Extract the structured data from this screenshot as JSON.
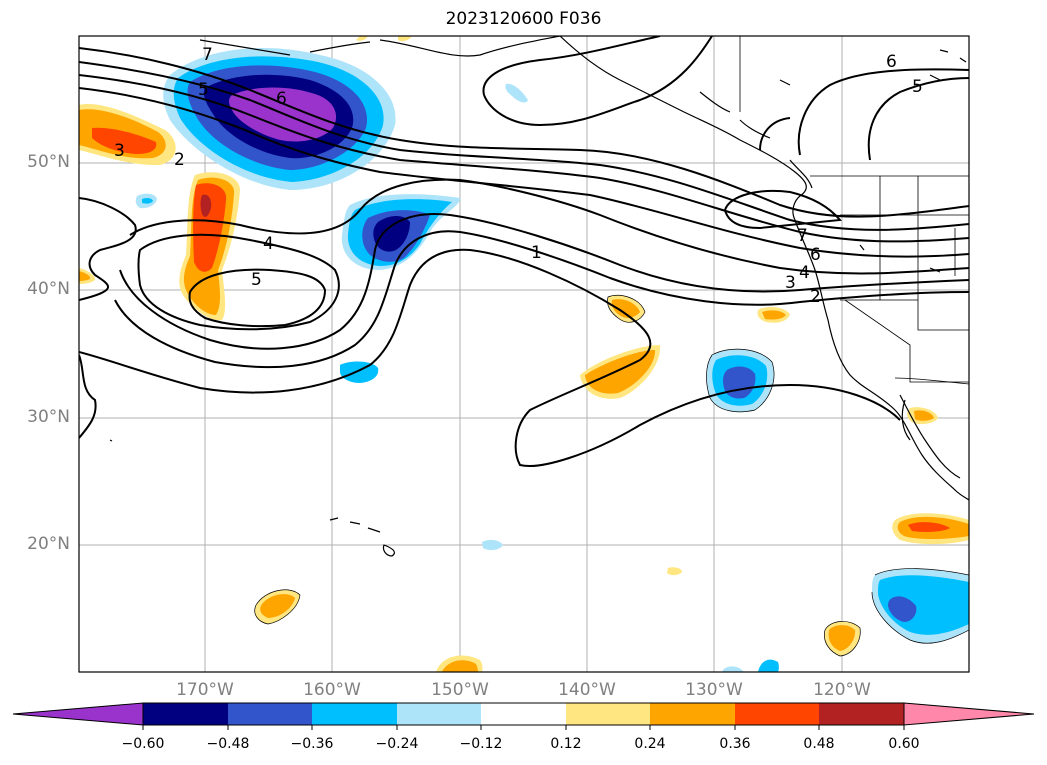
{
  "title": "2023120600 F036",
  "lat_labels": [
    "50°N",
    "40°N",
    "30°N",
    "20°N"
  ],
  "lon_labels": [
    "170°W",
    "160°W",
    "150°W",
    "140°W",
    "130°W",
    "120°W"
  ],
  "contour_labels": [
    "7",
    "5",
    "6",
    "3",
    "2",
    "4",
    "5",
    "1",
    "7",
    "6",
    "4",
    "3",
    "2",
    "6",
    "5"
  ],
  "colorbar": {
    "ticks": [
      "−0.60",
      "−0.48",
      "−0.36",
      "−0.24",
      "−0.12",
      "0.12",
      "0.24",
      "0.36",
      "0.48",
      "0.60"
    ],
    "colors": [
      "#9933cc",
      "#000080",
      "#3355cc",
      "#00bfff",
      "#aee4fa",
      "#ffffff",
      "#ffe680",
      "#ffa500",
      "#ff4500",
      "#b22222",
      "#ff88aa"
    ]
  },
  "map": {
    "projection": "cylindrical",
    "lon_range": [
      "180°W",
      "110°W"
    ],
    "lat_range": [
      "10°N",
      "60°N"
    ],
    "grid": true,
    "fill_field": "shaded anomaly",
    "contour_field": "black contours"
  }
}
